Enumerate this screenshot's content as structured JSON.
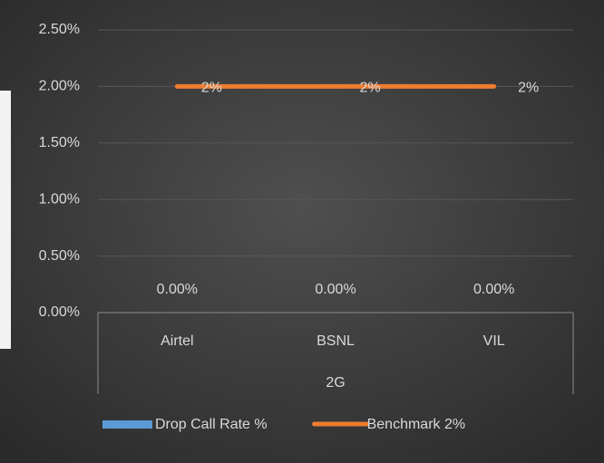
{
  "chart_data": {
    "type": "bar",
    "categories": [
      "Airtel",
      "BSNL",
      "VIL"
    ],
    "category_group": "2G",
    "series": [
      {
        "name": "Drop Call Rate %",
        "type": "bar",
        "color": "#5b9bd5",
        "values": [
          0,
          0,
          0
        ],
        "value_labels": [
          "0.00%",
          "0.00%",
          "0.00%"
        ]
      },
      {
        "name": "Benchmark 2%",
        "type": "line",
        "color": "#ed7d31",
        "values": [
          2,
          2,
          2
        ],
        "value_labels": [
          "2%",
          "2%",
          "2%"
        ]
      }
    ],
    "ylim": [
      0,
      2.5
    ],
    "yticks": [
      {
        "value": 0,
        "label": "0.00%"
      },
      {
        "value": 0.5,
        "label": "0.50%"
      },
      {
        "value": 1,
        "label": "1.00%"
      },
      {
        "value": 1.5,
        "label": "1.50%"
      },
      {
        "value": 2,
        "label": "2.00%"
      },
      {
        "value": 2.5,
        "label": "2.50%"
      }
    ],
    "grid": true,
    "legend": "bottom"
  }
}
